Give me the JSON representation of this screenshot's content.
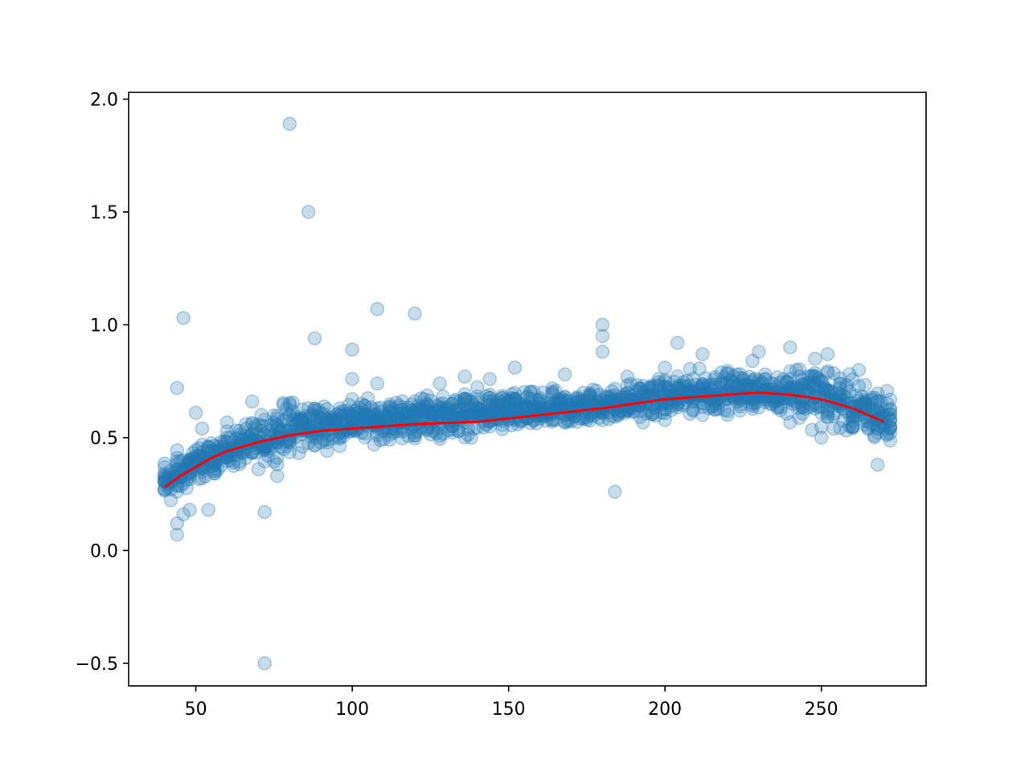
{
  "chart_data": {
    "type": "scatter",
    "title": "",
    "xlabel": "",
    "ylabel": "",
    "xlim": [
      28.5,
      283.5
    ],
    "ylim": [
      -0.6,
      2.03
    ],
    "x_ticks": [
      50,
      100,
      150,
      200,
      250
    ],
    "x_tick_labels": [
      "50",
      "100",
      "150",
      "200",
      "250"
    ],
    "y_ticks": [
      -0.5,
      0.0,
      0.5,
      1.0,
      1.5,
      2.0
    ],
    "y_tick_labels": [
      "−0.5",
      "0.0",
      "0.5",
      "1.0",
      "1.5",
      "2.0"
    ],
    "grid": false,
    "legend": "none",
    "colors": {
      "scatter": "#1f77b4",
      "fit": "#ff0000",
      "axes": "#000000"
    },
    "series": [
      {
        "kind": "scatter",
        "alpha": 0.25,
        "outliers": {
          "x": [
            80,
            86,
            46,
            108,
            120,
            88,
            100,
            180,
            180,
            44,
            50,
            52,
            54,
            68,
            72,
            72,
            76,
            184,
            204,
            212,
            228,
            230,
            240,
            248,
            252,
            262,
            268,
            44,
            44,
            46,
            48,
            100,
            108,
            128,
            136,
            144,
            152,
            168,
            180,
            188,
            200,
            250
          ],
          "y": [
            1.89,
            1.5,
            1.03,
            1.07,
            1.05,
            0.94,
            0.89,
            1.0,
            0.95,
            0.72,
            0.61,
            0.54,
            0.18,
            0.66,
            0.17,
            -0.5,
            0.33,
            0.26,
            0.92,
            0.87,
            0.84,
            0.88,
            0.9,
            0.85,
            0.87,
            0.8,
            0.38,
            0.07,
            0.12,
            0.16,
            0.18,
            0.76,
            0.74,
            0.74,
            0.77,
            0.76,
            0.81,
            0.78,
            0.88,
            0.77,
            0.81,
            0.5
          ]
        },
        "band": {
          "x": [
            40,
            45,
            50,
            55,
            60,
            65,
            70,
            75,
            80,
            90,
            100,
            110,
            120,
            130,
            140,
            150,
            160,
            170,
            180,
            190,
            200,
            210,
            220,
            230,
            235,
            240,
            245,
            250,
            255,
            260,
            265,
            270,
            272
          ],
          "lo": [
            0.22,
            0.26,
            0.32,
            0.36,
            0.38,
            0.4,
            0.4,
            0.44,
            0.46,
            0.48,
            0.51,
            0.51,
            0.52,
            0.53,
            0.54,
            0.55,
            0.56,
            0.57,
            0.59,
            0.6,
            0.61,
            0.63,
            0.64,
            0.65,
            0.65,
            0.62,
            0.6,
            0.58,
            0.57,
            0.54,
            0.52,
            0.5,
            0.5
          ],
          "hi": [
            0.38,
            0.42,
            0.44,
            0.46,
            0.52,
            0.52,
            0.56,
            0.6,
            0.63,
            0.63,
            0.64,
            0.64,
            0.66,
            0.66,
            0.68,
            0.68,
            0.68,
            0.69,
            0.7,
            0.72,
            0.74,
            0.77,
            0.77,
            0.76,
            0.74,
            0.8,
            0.79,
            0.79,
            0.77,
            0.72,
            0.7,
            0.68,
            0.67
          ]
        }
      },
      {
        "kind": "line",
        "x": [
          40,
          45,
          50,
          55,
          60,
          70,
          80,
          90,
          100,
          120,
          140,
          160,
          180,
          200,
          210,
          220,
          230,
          240,
          250,
          260,
          270
        ],
        "y": [
          0.28,
          0.33,
          0.37,
          0.41,
          0.44,
          0.48,
          0.51,
          0.53,
          0.54,
          0.56,
          0.57,
          0.6,
          0.63,
          0.67,
          0.68,
          0.69,
          0.7,
          0.69,
          0.67,
          0.63,
          0.57
        ]
      }
    ]
  }
}
